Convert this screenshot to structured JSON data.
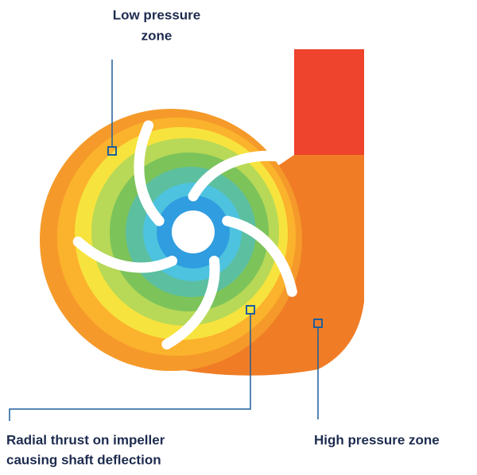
{
  "labels": {
    "low_pressure": [
      "Low pressure",
      "zone"
    ],
    "radial_thrust": [
      "Radial thrust on impeller",
      "causing shaft deflection"
    ],
    "high_pressure": "High pressure zone"
  }
}
